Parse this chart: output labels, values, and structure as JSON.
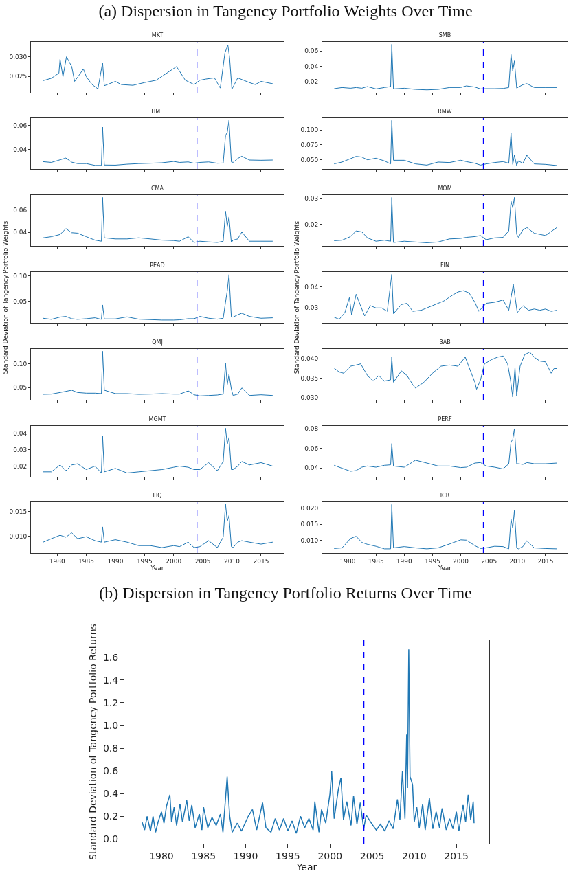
{
  "chart_data": [
    {
      "type": "line",
      "title": "MKT",
      "annotations": [
        "(a) Dispersion in Tangency Portfolio Weights Over Time"
      ],
      "color": "#1f77b4",
      "tick_labels": "y",
      "xlim": [
        1975.5,
        2018.9
      ],
      "ylim": [
        0.0208,
        0.0338
      ],
      "xticks": [
        1980,
        1985,
        1990,
        1995,
        2000,
        2005,
        2010,
        2015
      ],
      "yticks": [
        0.025,
        {
          "value": 0.03,
          "label": "0.030"
        }
      ],
      "ref_lines": [
        {
          "axis": "x",
          "value": 2004,
          "color": "#0000ff",
          "line_style": "dashed"
        }
      ],
      "x": [
        1977.6,
        1979,
        1980.3,
        1980.5,
        1981,
        1981.6,
        1982.5,
        1983,
        1984,
        1984.5,
        1985,
        1986,
        1987,
        1987.8,
        1988.1,
        1990,
        1991,
        1993,
        1995,
        1997,
        1999,
        2000.5,
        2002,
        2003.5,
        2004.5,
        2005.5,
        2007,
        2008,
        2008.8,
        2009.3,
        2009.6,
        2010,
        2011,
        2012,
        2013,
        2014,
        2015,
        2017
      ],
      "values": [
        0.0239,
        0.0245,
        0.0258,
        0.0294,
        0.0249,
        0.03,
        0.0275,
        0.0237,
        0.0258,
        0.0269,
        0.0249,
        0.0229,
        0.0218,
        0.0285,
        0.0226,
        0.0237,
        0.0229,
        0.0227,
        0.0234,
        0.024,
        0.026,
        0.0275,
        0.024,
        0.0229,
        0.024,
        0.0243,
        0.0246,
        0.022,
        0.031,
        0.033,
        0.0298,
        0.0217,
        0.0246,
        0.024,
        0.0234,
        0.0229,
        0.0237,
        0.0231
      ]
    },
    {
      "type": "line",
      "title": "SMB",
      "color": "#1f77b4",
      "tick_labels": "y",
      "xlim": [
        1975.5,
        2018.9
      ],
      "ylim": [
        0.0058,
        0.0718
      ],
      "xticks": [
        1980,
        1985,
        1990,
        1995,
        2000,
        2005,
        2010,
        2015
      ],
      "yticks": [
        0.02,
        0.04,
        0.06
      ],
      "ref_lines": [
        {
          "axis": "x",
          "value": 2004,
          "color": "#0000ff",
          "line_style": "dashed"
        }
      ],
      "x": [
        1977.6,
        1979,
        1980.5,
        1981.5,
        1982.5,
        1983.5,
        1985,
        1986.5,
        1987.6,
        1987.8,
        1988.1,
        1990,
        1992,
        1994,
        1996,
        1998,
        2000,
        2001,
        2002.5,
        2003.5,
        2004.5,
        2006,
        2007.5,
        2008.5,
        2008.9,
        2009.2,
        2009.5,
        2009.9,
        2010.2,
        2011,
        2011.7,
        2013,
        2015,
        2017
      ],
      "values": [
        0.0111,
        0.0126,
        0.0117,
        0.0126,
        0.0117,
        0.0138,
        0.0108,
        0.0126,
        0.0138,
        0.0688,
        0.0108,
        0.0117,
        0.0102,
        0.0096,
        0.0102,
        0.0126,
        0.0126,
        0.0147,
        0.0132,
        0.0108,
        0.0111,
        0.0111,
        0.0114,
        0.0126,
        0.0555,
        0.0339,
        0.0472,
        0.0117,
        0.0132,
        0.0162,
        0.0176,
        0.0126,
        0.0126,
        0.0126
      ]
    },
    {
      "type": "line",
      "title": "HML",
      "color": "#1f77b4",
      "tick_labels": "y",
      "xlim": [
        1975.5,
        2018.9
      ],
      "ylim": [
        0.0235,
        0.0662
      ],
      "xticks": [
        1980,
        1985,
        1990,
        1995,
        2000,
        2005,
        2010,
        2015
      ],
      "yticks": [
        0.04,
        0.06
      ],
      "ref_lines": [
        {
          "axis": "x",
          "value": 2004,
          "color": "#0000ff",
          "line_style": "dashed"
        }
      ],
      "x": [
        1977.6,
        1979,
        1980.5,
        1981.5,
        1982.5,
        1983.5,
        1985,
        1986.5,
        1987.6,
        1987.8,
        1988.1,
        1990,
        1992,
        1994,
        1996,
        1998,
        2000,
        2001,
        2002.5,
        2003.5,
        2004.5,
        2006,
        2007.5,
        2008.5,
        2008.9,
        2009.2,
        2009.5,
        2009.9,
        2010.2,
        2011,
        2011.7,
        2013,
        2015,
        2017
      ],
      "values": [
        0.0296,
        0.029,
        0.0312,
        0.0327,
        0.0292,
        0.028,
        0.028,
        0.0265,
        0.0265,
        0.0587,
        0.0268,
        0.0267,
        0.0275,
        0.028,
        0.0283,
        0.0287,
        0.0298,
        0.029,
        0.0294,
        0.0283,
        0.029,
        0.0294,
        0.0283,
        0.0285,
        0.0515,
        0.0544,
        0.0644,
        0.0294,
        0.029,
        0.0323,
        0.0342,
        0.031,
        0.0308,
        0.031
      ]
    },
    {
      "type": "line",
      "title": "RMW",
      "color": "#1f77b4",
      "tick_labels": "y",
      "xlim": [
        1975.5,
        2018.9
      ],
      "ylim": [
        0.0346,
        0.12
      ],
      "xticks": [
        1980,
        1985,
        1990,
        1995,
        2000,
        2005,
        2010,
        2015
      ],
      "yticks": [
        {
          "value": 0.05,
          "label": "0.050"
        },
        0.075,
        {
          "value": 0.1,
          "label": "0.100"
        }
      ],
      "ref_lines": [
        {
          "axis": "x",
          "value": 2004,
          "color": "#0000ff",
          "line_style": "dashed"
        }
      ],
      "x": [
        1977.6,
        1979,
        1980.5,
        1981.5,
        1982.5,
        1983.5,
        1985,
        1986.5,
        1987.6,
        1987.8,
        1988.1,
        1990,
        1992,
        1994,
        1996,
        1998,
        2000,
        2001,
        2002.5,
        2003.5,
        2004.5,
        2006,
        2007.5,
        2008.5,
        2008.9,
        2009.2,
        2009.5,
        2009.9,
        2010.2,
        2011,
        2011.7,
        2013,
        2015,
        2017
      ],
      "values": [
        0.0431,
        0.0462,
        0.0519,
        0.0558,
        0.0546,
        0.05,
        0.0527,
        0.0481,
        0.0431,
        0.1162,
        0.0492,
        0.0492,
        0.0431,
        0.0411,
        0.0462,
        0.0454,
        0.0492,
        0.0469,
        0.0442,
        0.0411,
        0.0431,
        0.0454,
        0.0469,
        0.0442,
        0.095,
        0.0423,
        0.0577,
        0.0404,
        0.0481,
        0.0442,
        0.0577,
        0.0431,
        0.0423,
        0.0404
      ]
    },
    {
      "type": "line",
      "title": "CMA",
      "color": "#1f77b4",
      "tick_labels": "y",
      "xlim": [
        1975.5,
        2018.9
      ],
      "ylim": [
        0.0277,
        0.0735
      ],
      "xticks": [
        1980,
        1985,
        1990,
        1995,
        2000,
        2005,
        2010,
        2015
      ],
      "yticks": [
        0.04,
        0.06
      ],
      "ref_lines": [
        {
          "axis": "x",
          "value": 2004,
          "color": "#0000ff",
          "line_style": "dashed"
        }
      ],
      "x": [
        1977.6,
        1979,
        1980.5,
        1981.5,
        1982.5,
        1983.5,
        1985,
        1986.5,
        1987.6,
        1987.8,
        1988.1,
        1990,
        1992,
        1994,
        1996,
        1998,
        2000,
        2001,
        2002.5,
        2003.5,
        2004.5,
        2006,
        2007.5,
        2008.5,
        2008.9,
        2009.2,
        2009.5,
        2009.9,
        2010.2,
        2011,
        2011.7,
        2013,
        2015,
        2017
      ],
      "values": [
        0.035,
        0.036,
        0.038,
        0.0433,
        0.0396,
        0.0392,
        0.036,
        0.0329,
        0.0319,
        0.0714,
        0.035,
        0.034,
        0.034,
        0.035,
        0.034,
        0.0329,
        0.0325,
        0.0319,
        0.036,
        0.0308,
        0.0319,
        0.0313,
        0.0308,
        0.0319,
        0.059,
        0.0454,
        0.0538,
        0.0308,
        0.0329,
        0.034,
        0.0402,
        0.0319,
        0.0319,
        0.0319
      ]
    },
    {
      "type": "line",
      "title": "MOM",
      "color": "#1f77b4",
      "tick_labels": "y",
      "xlim": [
        1975.5,
        2018.9
      ],
      "ylim": [
        0.0117,
        0.0313
      ],
      "xticks": [
        1980,
        1985,
        1990,
        1995,
        2000,
        2005,
        2010,
        2015
      ],
      "yticks": [
        0.02,
        0.03
      ],
      "ref_lines": [
        {
          "axis": "x",
          "value": 2004,
          "color": "#0000ff",
          "line_style": "dashed"
        }
      ],
      "x": [
        1977.6,
        1979,
        1980.5,
        1981.5,
        1982.5,
        1983.5,
        1985,
        1986.5,
        1987.6,
        1987.8,
        1988.1,
        1990,
        1992,
        1994,
        1996,
        1998,
        2000,
        2001,
        2002.5,
        2003.5,
        2004.5,
        2006,
        2007.5,
        2008.5,
        2008.9,
        2009.2,
        2009.5,
        2009.9,
        2010.2,
        2011,
        2011.7,
        2013,
        2015,
        2017
      ],
      "values": [
        0.0137,
        0.0139,
        0.0153,
        0.0175,
        0.0171,
        0.0148,
        0.0135,
        0.0139,
        0.0135,
        0.0304,
        0.013,
        0.0135,
        0.0132,
        0.0129,
        0.0132,
        0.0144,
        0.0146,
        0.015,
        0.0153,
        0.0157,
        0.0141,
        0.0148,
        0.015,
        0.0175,
        0.0289,
        0.0264,
        0.0304,
        0.0162,
        0.015,
        0.0179,
        0.0188,
        0.0166,
        0.0157,
        0.0188
      ]
    },
    {
      "type": "line",
      "title": "PEAD",
      "ylabel": "Standard Deviation of Tangency Portfolio Weights",
      "color": "#1f77b4",
      "tick_labels": "y",
      "xlim": [
        1975.5,
        2018.9
      ],
      "ylim": [
        0.008,
        0.108
      ],
      "xticks": [
        1980,
        1985,
        1990,
        1995,
        2000,
        2005,
        2010,
        2015
      ],
      "yticks": [
        0.05,
        {
          "value": 0.1,
          "label": "0.10"
        }
      ],
      "ref_lines": [
        {
          "axis": "x",
          "value": 2004,
          "color": "#0000ff",
          "line_style": "dashed"
        }
      ],
      "x": [
        1977.6,
        1979,
        1980.5,
        1981.5,
        1982.5,
        1983.5,
        1985,
        1986.5,
        1987.6,
        1987.8,
        1988.1,
        1990,
        1992,
        1994,
        1996,
        1998,
        2000,
        2001,
        2002.5,
        2003.5,
        2004.5,
        2006,
        2007.5,
        2008.5,
        2008.9,
        2009.2,
        2009.5,
        2009.9,
        2010.2,
        2011,
        2011.7,
        2013,
        2015,
        2017
      ],
      "values": [
        0.0171,
        0.0149,
        0.0194,
        0.0207,
        0.0162,
        0.0149,
        0.0162,
        0.018,
        0.0149,
        0.0432,
        0.0158,
        0.0158,
        0.0198,
        0.0153,
        0.0144,
        0.0135,
        0.0135,
        0.014,
        0.0162,
        0.0162,
        0.0207,
        0.0171,
        0.0153,
        0.0171,
        0.0486,
        0.0712,
        0.103,
        0.0194,
        0.0194,
        0.0239,
        0.027,
        0.0207,
        0.0171,
        0.018
      ]
    },
    {
      "type": "line",
      "title": "FIN",
      "ylabel": "Standard Deviation of Tangency Portfolio Weights",
      "color": "#1f77b4",
      "tick_labels": "y",
      "xlim": [
        1975.5,
        2018.9
      ],
      "ylim": [
        0.0229,
        0.0471
      ],
      "xticks": [
        1980,
        1985,
        1990,
        1995,
        2000,
        2005,
        2010,
        2015
      ],
      "yticks": [
        0.03,
        0.04
      ],
      "ref_lines": [
        {
          "axis": "x",
          "value": 2004,
          "color": "#0000ff",
          "line_style": "dashed"
        }
      ],
      "x": [
        1977.6,
        1978.5,
        1979.5,
        1980.3,
        1980.7,
        1981.5,
        1982.2,
        1983,
        1984,
        1985,
        1986,
        1987,
        1987.8,
        1988.1,
        1989.5,
        1990.5,
        1991.5,
        1993,
        1995,
        1997,
        1998.5,
        1999.5,
        2000.5,
        2001.5,
        2002.5,
        2003.2,
        2004.5,
        2006,
        2007.5,
        2008.5,
        2009.3,
        2010,
        2011,
        2012,
        2013,
        2014,
        2015,
        2016,
        2017
      ],
      "values": [
        0.0256,
        0.0246,
        0.0278,
        0.0349,
        0.0267,
        0.0365,
        0.0316,
        0.0262,
        0.0311,
        0.03,
        0.03,
        0.0284,
        0.046,
        0.0273,
        0.0316,
        0.0322,
        0.0284,
        0.0289,
        0.0311,
        0.0333,
        0.036,
        0.0376,
        0.0382,
        0.0371,
        0.0327,
        0.0284,
        0.0322,
        0.0327,
        0.0338,
        0.0289,
        0.0412,
        0.0278,
        0.0311,
        0.0289,
        0.0295,
        0.0289,
        0.0295,
        0.0284,
        0.0289
      ]
    },
    {
      "type": "line",
      "title": "QMJ",
      "color": "#1f77b4",
      "tick_labels": "y",
      "xlim": [
        1975.5,
        2018.9
      ],
      "ylim": [
        0.0245,
        0.1313
      ],
      "xticks": [
        1980,
        1985,
        1990,
        1995,
        2000,
        2005,
        2010,
        2015
      ],
      "yticks": [
        0.05,
        {
          "value": 0.1,
          "label": "0.10"
        }
      ],
      "ref_lines": [
        {
          "axis": "x",
          "value": 2004,
          "color": "#0000ff",
          "line_style": "dashed"
        }
      ],
      "x": [
        1977.6,
        1979,
        1980.5,
        1981.5,
        1982.5,
        1983.5,
        1985,
        1986.5,
        1987.6,
        1987.8,
        1988.1,
        1990,
        1992,
        1994,
        1996,
        1998,
        2000,
        2001,
        2002.5,
        2003.5,
        2004.5,
        2006,
        2007.5,
        2008.5,
        2008.9,
        2009.2,
        2009.5,
        2009.9,
        2010.2,
        2011,
        2011.7,
        2013,
        2015,
        2017
      ],
      "values": [
        0.036,
        0.0365,
        0.0399,
        0.0423,
        0.0447,
        0.0399,
        0.0385,
        0.0385,
        0.0375,
        0.1265,
        0.0447,
        0.0375,
        0.0375,
        0.036,
        0.0365,
        0.0375,
        0.0365,
        0.0365,
        0.0433,
        0.0351,
        0.0327,
        0.0336,
        0.0346,
        0.0365,
        0.101,
        0.0567,
        0.0784,
        0.0471,
        0.0336,
        0.0365,
        0.0495,
        0.0336,
        0.0351,
        0.0336
      ]
    },
    {
      "type": "line",
      "title": "BAB",
      "color": "#1f77b4",
      "tick_labels": "y",
      "xlim": [
        1975.5,
        2018.9
      ],
      "ylim": [
        0.0295,
        0.0425
      ],
      "xticks": [
        1980,
        1985,
        1990,
        1995,
        2000,
        2005,
        2010,
        2015
      ],
      "yticks": [
        {
          "value": 0.03,
          "label": "0.030"
        },
        0.035,
        {
          "value": 0.04,
          "label": "0.040"
        }
      ],
      "ref_lines": [
        {
          "axis": "x",
          "value": 2004,
          "color": "#0000ff",
          "line_style": "dashed"
        }
      ],
      "x": [
        1977.6,
        1978.5,
        1979.3,
        1980.5,
        1981.5,
        1982.3,
        1983.5,
        1984.5,
        1985.5,
        1986.5,
        1987.6,
        1987.8,
        1988.1,
        1989.5,
        1990.5,
        1991.5,
        1992,
        1993.5,
        1995,
        1996.5,
        1998,
        1999.5,
        2000.8,
        2001.8,
        2002.5,
        2002.8,
        2003.5,
        2004.2,
        2005.5,
        2006.5,
        2007.5,
        2008.3,
        2008.8,
        2009.2,
        2009.6,
        2009.9,
        2010.5,
        2011.3,
        2012.2,
        2013,
        2014,
        2015,
        2016,
        2016.5,
        2017
      ],
      "values": [
        0.0376,
        0.0366,
        0.0363,
        0.0381,
        0.0384,
        0.0387,
        0.0357,
        0.0343,
        0.0357,
        0.0343,
        0.0346,
        0.0404,
        0.034,
        0.0369,
        0.0357,
        0.0334,
        0.0325,
        0.034,
        0.0363,
        0.0381,
        0.0384,
        0.0381,
        0.0404,
        0.0366,
        0.034,
        0.0322,
        0.0346,
        0.0387,
        0.0398,
        0.0404,
        0.0407,
        0.0387,
        0.0346,
        0.0302,
        0.0378,
        0.0305,
        0.0381,
        0.041,
        0.0417,
        0.0404,
        0.0394,
        0.0392,
        0.0363,
        0.0375,
        0.0375
      ]
    },
    {
      "type": "line",
      "title": "MGMT",
      "color": "#1f77b4",
      "tick_labels": "y",
      "xlim": [
        1975.5,
        2018.9
      ],
      "ylim": [
        0.0136,
        0.0446
      ],
      "xticks": [
        1980,
        1985,
        1990,
        1995,
        2000,
        2005,
        2010,
        2015
      ],
      "yticks": [
        0.02,
        0.03,
        0.04
      ],
      "ref_lines": [
        {
          "axis": "x",
          "value": 2004,
          "color": "#0000ff",
          "line_style": "dashed"
        }
      ],
      "x": [
        1977.6,
        1979,
        1980.5,
        1981.5,
        1982.5,
        1983.5,
        1985,
        1986.5,
        1987.6,
        1987.8,
        1988.1,
        1990,
        1992,
        1994,
        1996,
        1998,
        2000,
        2001,
        2002.5,
        2003.5,
        2004.5,
        2006,
        2007.5,
        2008.5,
        2008.9,
        2009.2,
        2009.5,
        2009.9,
        2010.2,
        2011,
        2011.7,
        2013,
        2015,
        2017
      ],
      "values": [
        0.0166,
        0.0166,
        0.0208,
        0.0173,
        0.0208,
        0.0215,
        0.018,
        0.0201,
        0.0159,
        0.0386,
        0.0166,
        0.0187,
        0.0159,
        0.0166,
        0.0173,
        0.018,
        0.0194,
        0.0201,
        0.0194,
        0.018,
        0.018,
        0.0222,
        0.0173,
        0.0229,
        0.0432,
        0.0334,
        0.0376,
        0.018,
        0.018,
        0.0201,
        0.0229,
        0.0208,
        0.0222,
        0.0201
      ]
    },
    {
      "type": "line",
      "title": "PERF",
      "color": "#1f77b4",
      "tick_labels": "y",
      "xlim": [
        1975.5,
        2018.9
      ],
      "ylim": [
        0.0311,
        0.083
      ],
      "xticks": [
        1980,
        1985,
        1990,
        1995,
        2000,
        2005,
        2010,
        2015
      ],
      "yticks": [
        0.04,
        0.06,
        0.08
      ],
      "ref_lines": [
        {
          "axis": "x",
          "value": 2004,
          "color": "#0000ff",
          "line_style": "dashed"
        }
      ],
      "x": [
        1977.6,
        1979,
        1980.5,
        1981.5,
        1982.5,
        1983.5,
        1985,
        1986.5,
        1987.6,
        1987.8,
        1988.1,
        1990,
        1992,
        1994,
        1996,
        1998,
        2000,
        2001,
        2002.5,
        2003.5,
        2004.5,
        2006,
        2007.5,
        2008.5,
        2008.9,
        2009.2,
        2009.5,
        2009.9,
        2010.2,
        2011,
        2011.7,
        2013,
        2015,
        2017
      ],
      "values": [
        0.0428,
        0.0398,
        0.0367,
        0.0374,
        0.0409,
        0.0421,
        0.0409,
        0.0428,
        0.0433,
        0.065,
        0.0421,
        0.0409,
        0.048,
        0.0451,
        0.0421,
        0.0421,
        0.0405,
        0.0409,
        0.0451,
        0.0456,
        0.0421,
        0.0409,
        0.0391,
        0.0444,
        0.0667,
        0.069,
        0.0802,
        0.0444,
        0.0444,
        0.0437,
        0.0456,
        0.0444,
        0.0444,
        0.0451
      ]
    },
    {
      "type": "line",
      "title": "LIQ",
      "xlabel": "Year",
      "color": "#1f77b4",
      "xlim": [
        1975.5,
        2018.9
      ],
      "ylim": [
        0.0066,
        0.0169
      ],
      "xticks": [
        1980,
        1985,
        1990,
        1995,
        2000,
        2005,
        2010,
        2015
      ],
      "yticks": [
        {
          "value": 0.01,
          "label": "0.010"
        },
        0.015
      ],
      "ref_lines": [
        {
          "axis": "x",
          "value": 2004,
          "color": "#0000ff",
          "line_style": "dashed"
        }
      ],
      "x": [
        1977.6,
        1979,
        1980.5,
        1981.5,
        1982.5,
        1983.5,
        1985,
        1986.5,
        1987.6,
        1987.8,
        1988.1,
        1990,
        1992,
        1994,
        1996,
        1998,
        2000,
        2001,
        2002.5,
        2003.5,
        2004.5,
        2006,
        2007.5,
        2008.5,
        2008.9,
        2009.2,
        2009.5,
        2009.9,
        2010.2,
        2011,
        2011.7,
        2013,
        2015,
        2017
      ],
      "values": [
        0.0088,
        0.0095,
        0.0102,
        0.0098,
        0.0107,
        0.0095,
        0.0099,
        0.0091,
        0.0088,
        0.0119,
        0.0088,
        0.0093,
        0.0088,
        0.0081,
        0.0081,
        0.0077,
        0.0081,
        0.0079,
        0.0088,
        0.0077,
        0.0079,
        0.0091,
        0.0077,
        0.0098,
        0.0165,
        0.013,
        0.0142,
        0.0079,
        0.0077,
        0.0088,
        0.0091,
        0.0088,
        0.0084,
        0.0088
      ]
    },
    {
      "type": "line",
      "title": "ICR",
      "xlabel": "Year",
      "color": "#1f77b4",
      "xlim": [
        1975.5,
        2018.9
      ],
      "ylim": [
        0.0061,
        0.0219
      ],
      "xticks": [
        1980,
        1985,
        1990,
        1995,
        2000,
        2005,
        2010,
        2015
      ],
      "yticks": [
        {
          "value": 0.01,
          "label": "0.010"
        },
        0.015,
        {
          "value": 0.02,
          "label": "0.020"
        }
      ],
      "ref_lines": [
        {
          "axis": "x",
          "value": 2004,
          "color": "#0000ff",
          "line_style": "dashed"
        }
      ],
      "x": [
        1977.6,
        1979,
        1980.5,
        1981.5,
        1982.5,
        1983.5,
        1985,
        1986.5,
        1987.6,
        1987.8,
        1988.1,
        1990,
        1992,
        1994,
        1996,
        1998,
        2000,
        2001,
        2002.5,
        2003.5,
        2004.5,
        2006,
        2007.5,
        2008.5,
        2008.9,
        2009.2,
        2009.5,
        2009.9,
        2010.2,
        2011,
        2011.7,
        2013,
        2015,
        2017
      ],
      "values": [
        0.0075,
        0.0077,
        0.0106,
        0.0113,
        0.0094,
        0.0088,
        0.0082,
        0.0074,
        0.0074,
        0.0212,
        0.0077,
        0.0081,
        0.0077,
        0.0074,
        0.0077,
        0.0089,
        0.0102,
        0.0101,
        0.0084,
        0.0075,
        0.0077,
        0.0082,
        0.0081,
        0.0074,
        0.0166,
        0.0138,
        0.0193,
        0.0077,
        0.0074,
        0.0081,
        0.0099,
        0.0077,
        0.0075,
        0.0074
      ]
    },
    {
      "type": "line",
      "title": "(b) Dispersion in Tangency Portfolio Returns Over Time",
      "xlabel": "Year",
      "ylabel": "Standard Deviation of Tangency Portfolio Returns",
      "color": "#1f77b4",
      "xlim": [
        1975.6,
        2018.9
      ],
      "ylim": [
        -0.04,
        1.75
      ],
      "xticks": [
        1980,
        1985,
        1990,
        1995,
        2000,
        2005,
        2010,
        2015
      ],
      "yticks": [
        {
          "value": 0,
          "label": "0.0"
        },
        0.2,
        0.4,
        0.6,
        0.8,
        {
          "value": 1,
          "label": "1.0"
        },
        1.2,
        1.4,
        1.6
      ],
      "ref_lines": [
        {
          "axis": "x",
          "value": 2004,
          "color": "#0000ff",
          "line_style": "dashed"
        }
      ],
      "x": [
        1977.7,
        1978,
        1978.3,
        1978.7,
        1979,
        1979.3,
        1979.6,
        1980,
        1980.3,
        1980.6,
        1981,
        1981.2,
        1981.5,
        1981.8,
        1982.2,
        1982.5,
        1983,
        1983.3,
        1983.6,
        1984,
        1984.5,
        1984.8,
        1985,
        1985.5,
        1986,
        1986.5,
        1987,
        1987.3,
        1987.8,
        1988.1,
        1988.4,
        1989,
        1989.5,
        1990.3,
        1990.8,
        1991.3,
        1992,
        1992.4,
        1993,
        1993.5,
        1994,
        1994.5,
        1995,
        1995.5,
        1996,
        1996.5,
        1997,
        1997.5,
        1998,
        1998.2,
        1998.7,
        1999,
        1999.5,
        2000,
        2000.2,
        2000.5,
        2001,
        2001.3,
        2001.6,
        2002,
        2002.5,
        2002.8,
        2003.2,
        2003.6,
        2004,
        2004.3,
        2005,
        2005.5,
        2006,
        2006.5,
        2007,
        2007.5,
        2008,
        2008.3,
        2008.6,
        2008.9,
        2009.1,
        2009.2,
        2009.35,
        2009.5,
        2009.8,
        2010,
        2010.3,
        2010.6,
        2011,
        2011.3,
        2011.8,
        2012.2,
        2012.6,
        2013,
        2013.3,
        2013.8,
        2014.2,
        2014.6,
        2015,
        2015.3,
        2015.8,
        2016.1,
        2016.4,
        2016.7,
        2017,
        2017.1
      ],
      "values": [
        0.15,
        0.08,
        0.2,
        0.07,
        0.2,
        0.06,
        0.15,
        0.24,
        0.14,
        0.29,
        0.39,
        0.15,
        0.28,
        0.12,
        0.31,
        0.15,
        0.34,
        0.16,
        0.3,
        0.1,
        0.22,
        0.08,
        0.28,
        0.1,
        0.19,
        0.12,
        0.22,
        0.06,
        0.55,
        0.2,
        0.06,
        0.14,
        0.07,
        0.2,
        0.26,
        0.08,
        0.32,
        0.1,
        0.06,
        0.18,
        0.08,
        0.18,
        0.07,
        0.16,
        0.05,
        0.2,
        0.1,
        0.18,
        0.08,
        0.33,
        0.06,
        0.26,
        0.14,
        0.4,
        0.6,
        0.18,
        0.44,
        0.54,
        0.17,
        0.33,
        0.12,
        0.38,
        0.13,
        0.32,
        0.09,
        0.21,
        0.13,
        0.08,
        0.13,
        0.07,
        0.16,
        0.09,
        0.35,
        0.17,
        0.6,
        0.18,
        0.92,
        0.45,
        1.67,
        0.55,
        0.48,
        0.15,
        0.28,
        0.1,
        0.31,
        0.08,
        0.36,
        0.09,
        0.24,
        0.1,
        0.27,
        0.08,
        0.18,
        0.09,
        0.24,
        0.07,
        0.3,
        0.15,
        0.39,
        0.17,
        0.33,
        0.14
      ]
    }
  ]
}
